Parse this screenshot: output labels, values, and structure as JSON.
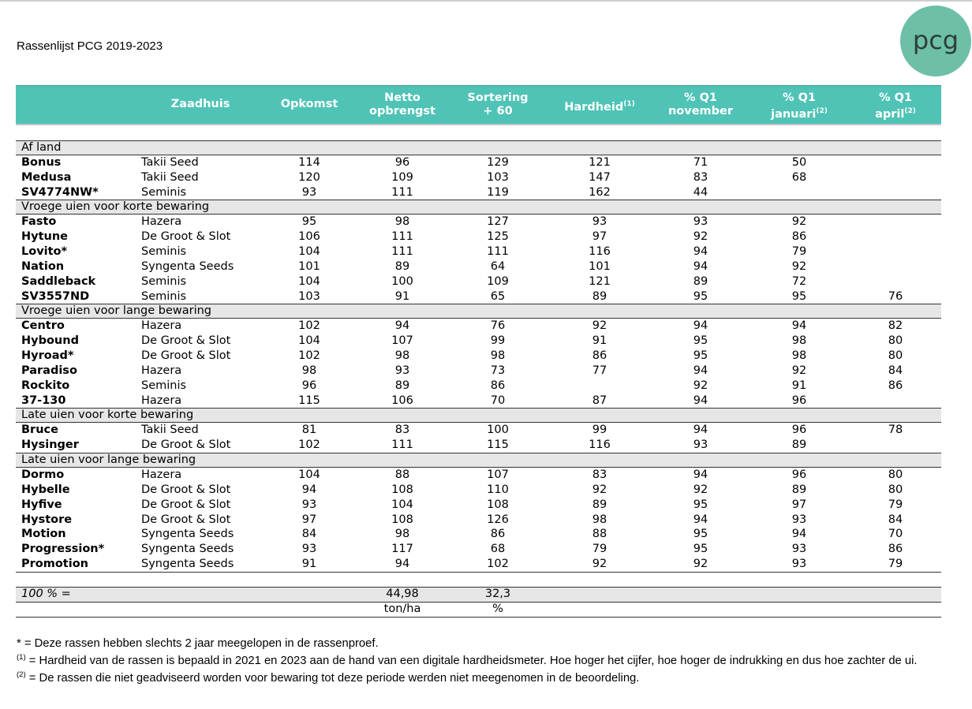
{
  "header": {
    "title": "Rassenlijst PCG 2019-2023",
    "logo": "pcg"
  },
  "table": {
    "columns": [
      {
        "lines": [
          "Zaadhuis"
        ]
      },
      {
        "lines": [
          "Opkomst"
        ]
      },
      {
        "lines": [
          "Netto",
          "opbrengst"
        ]
      },
      {
        "lines": [
          "Sortering",
          "+ 60"
        ]
      },
      {
        "lines": [
          "Hardheid"
        ],
        "sup": "(1)"
      },
      {
        "lines": [
          "% Q1",
          "november"
        ]
      },
      {
        "lines": [
          "% Q1",
          "januari"
        ],
        "sup": "(2)"
      },
      {
        "lines": [
          "% Q1",
          "april"
        ],
        "sup": "(2)"
      }
    ],
    "groups": [
      {
        "label": "Af land",
        "rows": [
          [
            "Bonus",
            "Takii Seed",
            114,
            96,
            129,
            121,
            71,
            50,
            null
          ],
          [
            "Medusa",
            "Takii Seed",
            120,
            109,
            103,
            147,
            83,
            68,
            null
          ],
          [
            "SV4774NW*",
            "Seminis",
            93,
            111,
            119,
            162,
            44,
            null,
            null
          ]
        ]
      },
      {
        "label": "Vroege uien voor korte bewaring",
        "rows": [
          [
            "Fasto",
            "Hazera",
            95,
            98,
            127,
            93,
            93,
            92,
            null
          ],
          [
            "Hytune",
            "De Groot & Slot",
            106,
            111,
            125,
            97,
            92,
            86,
            null
          ],
          [
            "Lovito*",
            "Seminis",
            104,
            111,
            111,
            116,
            94,
            79,
            null
          ],
          [
            "Nation",
            "Syngenta Seeds",
            101,
            89,
            64,
            101,
            94,
            92,
            null
          ],
          [
            "Saddleback",
            "Seminis",
            104,
            100,
            109,
            121,
            89,
            72,
            null
          ],
          [
            "SV3557ND",
            "Seminis",
            103,
            91,
            65,
            89,
            95,
            95,
            76
          ]
        ]
      },
      {
        "label": "Vroege uien voor lange bewaring",
        "rows": [
          [
            "Centro",
            "Hazera",
            102,
            94,
            76,
            92,
            94,
            94,
            82
          ],
          [
            "Hybound",
            "De Groot & Slot",
            104,
            107,
            99,
            91,
            95,
            98,
            80
          ],
          [
            "Hyroad*",
            "De Groot & Slot",
            102,
            98,
            98,
            86,
            95,
            98,
            80
          ],
          [
            "Paradiso",
            "Hazera",
            98,
            93,
            73,
            77,
            94,
            92,
            84
          ],
          [
            "Rockito",
            "Seminis",
            96,
            89,
            86,
            null,
            92,
            91,
            86
          ],
          [
            "37-130",
            "Hazera",
            115,
            106,
            70,
            87,
            94,
            96,
            null
          ]
        ]
      },
      {
        "label": "Late uien voor korte bewaring",
        "rows": [
          [
            "Bruce",
            "Takii Seed",
            81,
            83,
            100,
            99,
            94,
            96,
            78
          ],
          [
            "Hysinger",
            "De Groot & Slot",
            102,
            111,
            115,
            116,
            93,
            89,
            null
          ]
        ]
      },
      {
        "label": "Late uien voor lange bewaring",
        "rows": [
          [
            "Dormo",
            "Hazera",
            104,
            88,
            107,
            83,
            94,
            96,
            80
          ],
          [
            "Hybelle",
            "De Groot & Slot",
            94,
            108,
            110,
            92,
            92,
            89,
            80
          ],
          [
            "Hyfive",
            "De Groot & Slot",
            93,
            104,
            108,
            89,
            95,
            97,
            79
          ],
          [
            "Hystore",
            "De Groot & Slot",
            97,
            108,
            126,
            98,
            94,
            93,
            84
          ],
          [
            "Motion",
            "Syngenta Seeds",
            84,
            98,
            86,
            88,
            95,
            94,
            70
          ],
          [
            "Progression*",
            "Syngenta Seeds",
            93,
            117,
            68,
            79,
            95,
            93,
            86
          ],
          [
            "Promotion",
            "Syngenta Seeds",
            91,
            94,
            102,
            92,
            92,
            93,
            79
          ]
        ]
      }
    ],
    "totals": [
      [
        "100 % =",
        null,
        null,
        "44,98",
        "32,3",
        null,
        null,
        null,
        null
      ],
      [
        null,
        null,
        null,
        "ton/ha",
        "%",
        null,
        null,
        null,
        null
      ]
    ]
  },
  "footnotes": [
    {
      "text": "* = Deze rassen hebben slechts 2 jaar meegelopen in de rassenproef."
    },
    {
      "sup": "(1)",
      "text": "= Hardheid van de rassen is bepaald in 2021 en 2023 aan de hand van een digitale hardheidsmeter. Hoe hoger het cijfer, hoe hoger de indrukking en dus hoe zachter de ui."
    },
    {
      "sup": "(2)",
      "text": "= De rassen die niet geadviseerd worden voor bewaring tot deze periode werden niet meegenomen in de beoordeling."
    }
  ]
}
